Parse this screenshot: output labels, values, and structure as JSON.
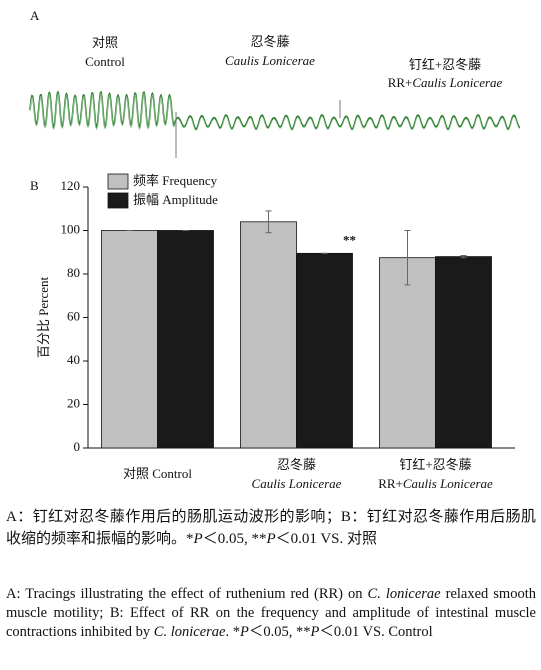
{
  "panel_a": {
    "label": "A",
    "segments": [
      {
        "title": "对照",
        "subtitle": "Control"
      },
      {
        "title": "忍冬藤",
        "subtitle_italic": "Caulis Lonicerae"
      },
      {
        "title": "钉红+忍冬藤",
        "subtitle": "RR+",
        "subtitle_italic": "Caulis Lonicerae"
      }
    ]
  },
  "chart_data": {
    "type": "bar",
    "panel_label": "B",
    "y_label": "百分比 Percent",
    "categories": [
      "对照 Control",
      "忍冬藤",
      "钉红+忍冬藤"
    ],
    "category_notes": [
      null,
      {
        "italic": "Caulis Lonicerae"
      },
      {
        "plain": "RR+",
        "italic": "Caulis Lonicerae"
      }
    ],
    "series": [
      {
        "name": "频率 Frequency",
        "color": "#c0c0c0",
        "values": [
          100,
          104,
          87.5
        ],
        "errors": [
          0,
          5,
          12.5
        ]
      },
      {
        "name": "振幅 Amplitude",
        "color": "#1a1a1a",
        "values": [
          100,
          89.5,
          88
        ],
        "errors": [
          0,
          0,
          0.5
        ],
        "value_annotations": [
          null,
          "**",
          null
        ]
      }
    ],
    "ylim": [
      0,
      120
    ],
    "yticks": [
      0,
      20,
      40,
      60,
      80,
      100,
      120
    ],
    "grid": false,
    "legend": "top-left"
  },
  "caption": {
    "zh": [
      {
        "text": "A：钉红对忍冬藤作用后的肠肌运动波形的影响；B：钉红对忍冬藤作用后肠肌收缩的频率和振幅的影响。*"
      },
      {
        "text": "P",
        "italic": true
      },
      {
        "text": "＜0.05, **"
      },
      {
        "text": "P",
        "italic": true
      },
      {
        "text": "＜0.01 VS. 对照"
      }
    ],
    "en": [
      {
        "text": "A: Tracings illustrating the effect of ruthenium red (RR) on "
      },
      {
        "text": "C. lonicerae",
        "italic": true
      },
      {
        "text": " relaxed smooth muscle motility; B: Effect of RR on the frequency and amplitude of intestinal muscle contractions inhibited by "
      },
      {
        "text": "C. lonicerae",
        "italic": true
      },
      {
        "text": ". *"
      },
      {
        "text": "P",
        "italic": true
      },
      {
        "text": "＜0.05, **"
      },
      {
        "text": "P",
        "italic": true
      },
      {
        "text": "＜0.01 VS. Control"
      }
    ]
  }
}
